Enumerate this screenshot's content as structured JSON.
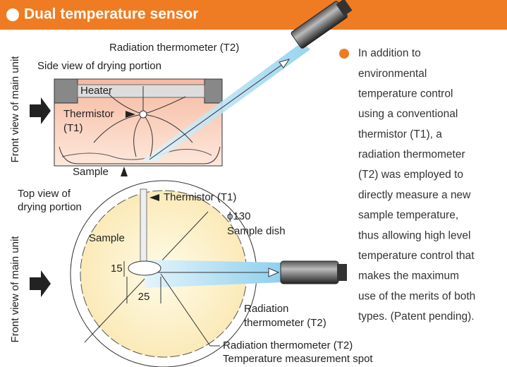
{
  "header": {
    "title": "Dual temperature sensor"
  },
  "side_view": {
    "thermometer": "Radiation thermometer (T2)",
    "title": "Side view of drying portion",
    "heater": "Heater",
    "thermistor": "Thermistor",
    "thermistor_id": "(T1)",
    "sample": "Sample",
    "front": "Front view of main unit"
  },
  "top_view": {
    "title_1": "Top view of",
    "title_2": "drying portion",
    "thermistor": "Thermistor (T1)",
    "diameter": "ϕ130",
    "dish": "Sample dish",
    "sample": "Sample",
    "height": "15",
    "width": "25",
    "thermometer_1": "Radiation",
    "thermometer_2": "thermometer (T2)",
    "spot_1": "Radiation thermometer (T2)",
    "spot_2": "Temperature measurement spot",
    "front": "Front view of main unit"
  },
  "description": {
    "lines": [
      "In addition to",
      "environmental",
      "temperature control",
      "using a conventional",
      "thermistor (T1), a",
      "radiation thermometer",
      "(T2) was employed to",
      "directly measure a new",
      "sample temperature,",
      "thus allowing high level",
      "temperature control that",
      "makes the maximum",
      "use of the merits of both",
      "types. (Patent pending)."
    ]
  }
}
